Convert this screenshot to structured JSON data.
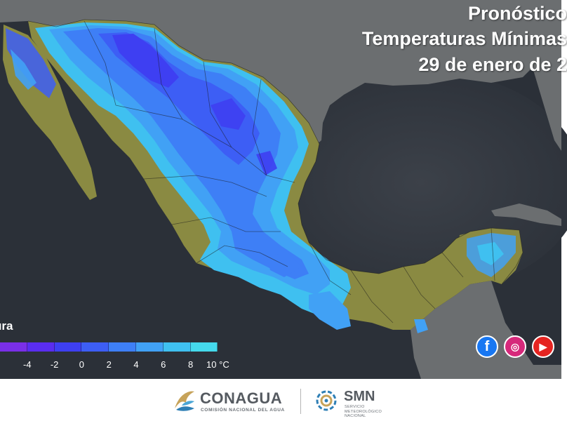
{
  "map": {
    "title_lines": [
      "Pronóstico",
      "Temperaturas Mínimas",
      "29 de enero de 2"
    ],
    "region": "Mexico",
    "ocean_color": "#2b3038",
    "land_color_foreign": "#6b6e70",
    "warm_land_color": "#8a8a42"
  },
  "legend": {
    "label": "ura",
    "unit": "°C",
    "ticks": [
      "-4",
      "-2",
      "0",
      "2",
      "4",
      "6",
      "8",
      "10 °C"
    ],
    "tick_values": [
      -4,
      -2,
      0,
      2,
      4,
      6,
      8,
      10
    ],
    "bins": [
      {
        "from": -6,
        "to": -4,
        "color": "#7a2fe8"
      },
      {
        "from": -4,
        "to": -2,
        "color": "#5a2df0"
      },
      {
        "from": -2,
        "to": 0,
        "color": "#3e3ff2"
      },
      {
        "from": 0,
        "to": 2,
        "color": "#3d5ef5"
      },
      {
        "from": 2,
        "to": 4,
        "color": "#3e7ff6"
      },
      {
        "from": 4,
        "to": 6,
        "color": "#41a1f5"
      },
      {
        "from": 6,
        "to": 8,
        "color": "#3fc0f0"
      },
      {
        "from": 8,
        "to": 10,
        "color": "#45d9ec"
      }
    ]
  },
  "social": [
    {
      "name": "facebook-icon",
      "glyph": "f",
      "color": "#1877f2"
    },
    {
      "name": "instagram-icon",
      "glyph": "◎",
      "color": "#d6297b"
    },
    {
      "name": "youtube-icon",
      "glyph": "▶",
      "color": "#e52421"
    }
  ],
  "footer": {
    "conagua_name": "CONAGUA",
    "conagua_sub": "COMISIÓN NACIONAL DEL AGUA",
    "smn_name": "SMN",
    "smn_sub": "SERVICIO METEOROLÓGICO NACIONAL"
  }
}
